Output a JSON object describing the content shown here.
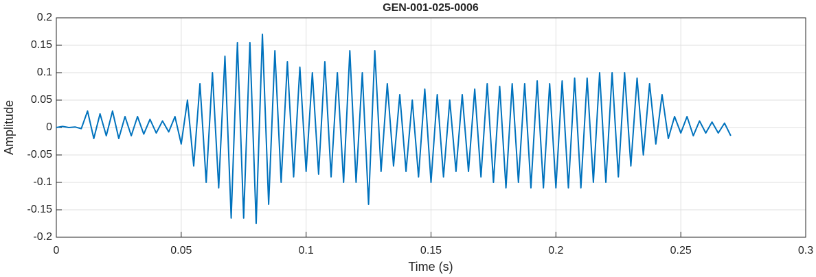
{
  "chart_data": {
    "type": "line",
    "title": "GEN-001-025-0006",
    "xlabel": "Time (s)",
    "ylabel": "Amplitude",
    "x": [
      0,
      0.0025,
      0.005,
      0.0075,
      0.01,
      0.0125,
      0.015,
      0.0175,
      0.02,
      0.0225,
      0.025,
      0.0275,
      0.03,
      0.0325,
      0.035,
      0.0375,
      0.04,
      0.0425,
      0.045,
      0.0475,
      0.05,
      0.0525,
      0.055,
      0.0575,
      0.06,
      0.0625,
      0.065,
      0.0675,
      0.07,
      0.0725,
      0.075,
      0.0775,
      0.08,
      0.0825,
      0.085,
      0.0875,
      0.09,
      0.0925,
      0.095,
      0.0975,
      0.1,
      0.1025,
      0.105,
      0.1075,
      0.11,
      0.1125,
      0.115,
      0.1175,
      0.12,
      0.1225,
      0.125,
      0.1275,
      0.13,
      0.1325,
      0.135,
      0.1375,
      0.14,
      0.1425,
      0.145,
      0.1475,
      0.15,
      0.1525,
      0.155,
      0.1575,
      0.16,
      0.1625,
      0.165,
      0.1675,
      0.17,
      0.1725,
      0.175,
      0.1775,
      0.18,
      0.1825,
      0.185,
      0.1875,
      0.19,
      0.1925,
      0.195,
      0.1975,
      0.2,
      0.2025,
      0.205,
      0.2075,
      0.21,
      0.2125,
      0.215,
      0.2175,
      0.22,
      0.2225,
      0.225,
      0.2275,
      0.23,
      0.2325,
      0.235,
      0.2375,
      0.24,
      0.2425,
      0.245,
      0.2475,
      0.25,
      0.2525,
      0.255,
      0.2575,
      0.26,
      0.2625,
      0.265,
      0.2675,
      0.27
    ],
    "series": [
      {
        "color": "#0072bd",
        "values": [
          0,
          0.002,
          0,
          0.001,
          -0.002,
          0.03,
          -0.02,
          0.025,
          -0.015,
          0.03,
          -0.02,
          0.02,
          -0.015,
          0.02,
          -0.012,
          0.015,
          -0.01,
          0.012,
          -0.008,
          0.02,
          -0.03,
          0.05,
          -0.07,
          0.08,
          -0.1,
          0.1,
          -0.11,
          0.13,
          -0.165,
          0.155,
          -0.165,
          0.155,
          -0.175,
          0.17,
          -0.14,
          0.14,
          -0.1,
          0.12,
          -0.09,
          0.11,
          -0.08,
          0.1,
          -0.085,
          0.12,
          -0.09,
          0.1,
          -0.1,
          0.14,
          -0.1,
          0.1,
          -0.14,
          0.14,
          -0.08,
          0.08,
          -0.07,
          0.06,
          -0.08,
          0.05,
          -0.09,
          0.07,
          -0.1,
          0.06,
          -0.09,
          0.05,
          -0.08,
          0.06,
          -0.08,
          0.07,
          -0.09,
          0.08,
          -0.1,
          0.075,
          -0.11,
          0.08,
          -0.1,
          0.08,
          -0.11,
          0.085,
          -0.11,
          0.08,
          -0.11,
          0.085,
          -0.11,
          0.09,
          -0.11,
          0.09,
          -0.1,
          0.1,
          -0.1,
          0.1,
          -0.09,
          0.1,
          -0.07,
          0.09,
          -0.05,
          0.08,
          -0.03,
          0.06,
          -0.02,
          0.02,
          -0.01,
          0.02,
          -0.015,
          0.012,
          -0.01,
          0.01,
          -0.01,
          0.008,
          -0.015
        ]
      }
    ],
    "xlim": [
      0,
      0.3
    ],
    "xticks": [
      0,
      0.05,
      0.1,
      0.15,
      0.2,
      0.25,
      0.3
    ],
    "ylim": [
      -0.2,
      0.2
    ],
    "yticks": [
      -0.2,
      -0.15,
      -0.1,
      -0.05,
      0,
      0.05,
      0.1,
      0.15,
      0.2
    ],
    "grid": true
  }
}
